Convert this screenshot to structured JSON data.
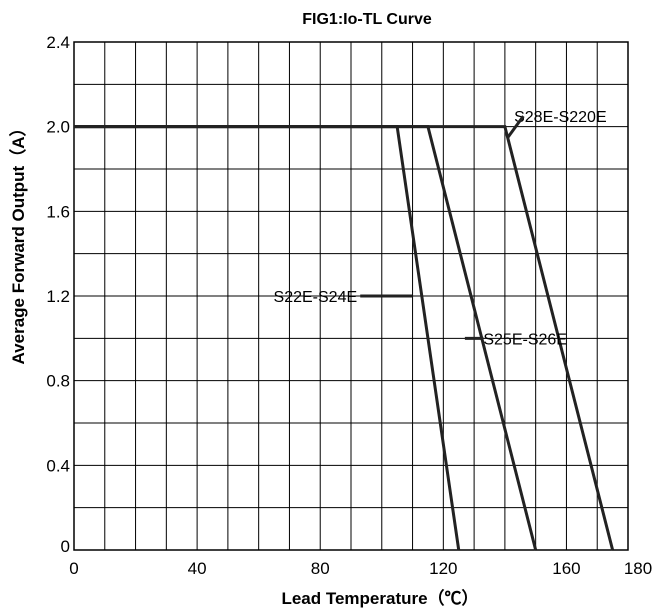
{
  "chart_data": {
    "type": "line",
    "title": "FIG1:Io-TL Curve",
    "xlabel": "Lead Temperature（℃）",
    "ylabel": "Average Forward Output（A）",
    "xlim": [
      0,
      180
    ],
    "ylim": [
      0,
      2.4
    ],
    "xticks": [
      0,
      20,
      40,
      60,
      80,
      100,
      120,
      140,
      160,
      180
    ],
    "xtick_labels": [
      "0",
      "",
      "40",
      "",
      "80",
      "",
      "120",
      "",
      "160",
      "180"
    ],
    "yticks": [
      0,
      0.2,
      0.4,
      0.6,
      0.8,
      1.0,
      1.2,
      1.4,
      1.6,
      1.8,
      2.0,
      2.2,
      2.4
    ],
    "ytick_labels": [
      "0",
      "",
      "0.4",
      "",
      "0.8",
      "",
      "1.2",
      "",
      "1.6",
      "",
      "2.0",
      "",
      "2.4"
    ],
    "x_minor_step": 10,
    "grid": true,
    "series": [
      {
        "name": "S22E-S24E",
        "x": [
          0,
          105,
          125
        ],
        "y": [
          2.0,
          2.0,
          0
        ]
      },
      {
        "name": "S25E-S26E",
        "x": [
          0,
          115,
          150
        ],
        "y": [
          2.0,
          2.0,
          0
        ]
      },
      {
        "name": "S28E-S220E",
        "x": [
          0,
          140,
          175
        ],
        "y": [
          2.0,
          2.0,
          0
        ]
      }
    ],
    "annotations": [
      {
        "series": 0,
        "text": "S22E-S24E",
        "label_at": [
          92,
          1.2
        ],
        "anchor": "end",
        "line_from": [
          93,
          1.2
        ],
        "line_to": [
          110,
          1.2
        ]
      },
      {
        "series": 1,
        "text": "S25E-S26E",
        "label_at": [
          133,
          1.0
        ],
        "anchor": "start",
        "line_from": [
          133,
          1.0
        ],
        "line_to": [
          127,
          1.0
        ]
      },
      {
        "series": 2,
        "text": "S28E-S220E",
        "label_at": [
          143,
          2.05
        ],
        "anchor": "start",
        "line_from": [
          146,
          2.05
        ],
        "line_to": [
          141,
          1.95
        ]
      }
    ]
  }
}
